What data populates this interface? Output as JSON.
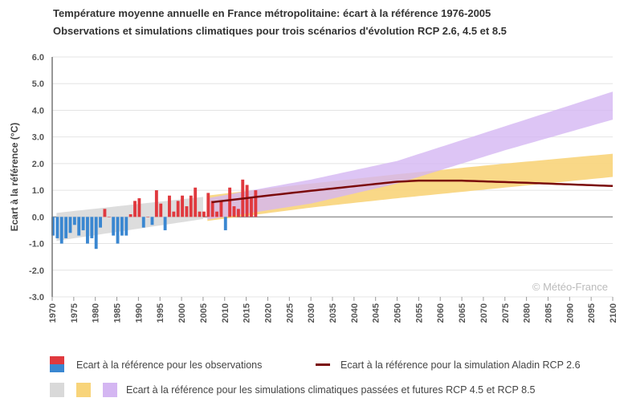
{
  "titles": {
    "line1": "Température moyenne annuelle en France métropolitaine: écart à la référence 1976-2005",
    "line2": "Observations et simulations climatiques pour trois scénarios d'évolution RCP 2.6, 4.5 et 8.5"
  },
  "copyright": "© Météo-France",
  "legend": {
    "observations": "Ecart à la référence pour les observations",
    "aladin": "Ecart à la référence pour la simulation Aladin RCP 2.6",
    "simulations": "Ecart à la référence pour les simulations climatiques passées et futures RCP 4.5 et RCP 8.5"
  },
  "colors": {
    "positive": "#e0393e",
    "negative": "#3a87d1",
    "past_band": "#d9d9d9",
    "rcp45": "#f8d47a",
    "rcp85": "#d4b6f2",
    "aladin": "#7a0a0a"
  },
  "chart_data": {
    "type": "bar",
    "ylabel": "Ecart à la référence (°C)",
    "xlabel": "",
    "xlim": [
      1970,
      2100
    ],
    "ylim": [
      -3.0,
      6.0
    ],
    "yticks": [
      "-3.0",
      "-2.0",
      "-1.0",
      "0.0",
      "1.0",
      "2.0",
      "3.0",
      "4.0",
      "5.0",
      "6.0"
    ],
    "xticks": [
      "1970",
      "1975",
      "1980",
      "1985",
      "1990",
      "1995",
      "2000",
      "2005",
      "2010",
      "2015",
      "2020",
      "2025",
      "2030",
      "2035",
      "2040",
      "2045",
      "2050",
      "2055",
      "2060",
      "2065",
      "2070",
      "2075",
      "2080",
      "2085",
      "2090",
      "2095",
      "2100"
    ],
    "grid": true,
    "observations": {
      "years": [
        1970,
        1971,
        1972,
        1973,
        1974,
        1975,
        1976,
        1977,
        1978,
        1979,
        1980,
        1981,
        1982,
        1983,
        1984,
        1985,
        1986,
        1987,
        1988,
        1989,
        1990,
        1991,
        1992,
        1993,
        1994,
        1995,
        1996,
        1997,
        1998,
        1999,
        2000,
        2001,
        2002,
        2003,
        2004,
        2005,
        2006,
        2007,
        2008,
        2009,
        2010,
        2011,
        2012,
        2013,
        2014,
        2015,
        2016,
        2017
      ],
      "values": [
        -0.7,
        -0.8,
        -1.0,
        -0.8,
        -0.6,
        -0.3,
        -0.7,
        -0.5,
        -1.0,
        -0.8,
        -1.2,
        -0.4,
        0.3,
        0.0,
        -0.7,
        -1.0,
        -0.7,
        -0.7,
        0.1,
        0.6,
        0.7,
        -0.4,
        0.0,
        -0.3,
        1.0,
        0.5,
        -0.5,
        0.8,
        0.2,
        0.6,
        0.8,
        0.4,
        0.8,
        1.1,
        0.2,
        0.2,
        0.9,
        0.6,
        0.2,
        0.6,
        -0.5,
        1.1,
        0.4,
        0.3,
        1.4,
        1.2,
        0.7,
        1.0
      ]
    },
    "bands": [
      {
        "name": "past",
        "x": [
          1971,
          2005
        ],
        "lower": [
          -0.9,
          -0.08
        ],
        "upper": [
          0.15,
          0.75
        ]
      },
      {
        "name": "RCP 4.5",
        "x": [
          2006,
          2030,
          2050,
          2075,
          2100
        ],
        "lower": [
          -0.15,
          0.35,
          0.7,
          1.1,
          1.5
        ],
        "upper": [
          0.8,
          1.25,
          1.6,
          2.0,
          2.37
        ]
      },
      {
        "name": "RCP 8.5",
        "x": [
          2006,
          2030,
          2050,
          2075,
          2100
        ],
        "lower": [
          -0.1,
          0.5,
          1.25,
          2.5,
          3.65
        ],
        "upper": [
          0.7,
          1.4,
          2.1,
          3.4,
          4.7
        ]
      }
    ],
    "aladin_rcp26": {
      "x": [
        2007,
        2020,
        2030,
        2040,
        2050,
        2055,
        2065,
        2080,
        2090,
        2100
      ],
      "y": [
        0.55,
        0.8,
        0.98,
        1.15,
        1.32,
        1.36,
        1.36,
        1.28,
        1.22,
        1.16
      ]
    }
  }
}
